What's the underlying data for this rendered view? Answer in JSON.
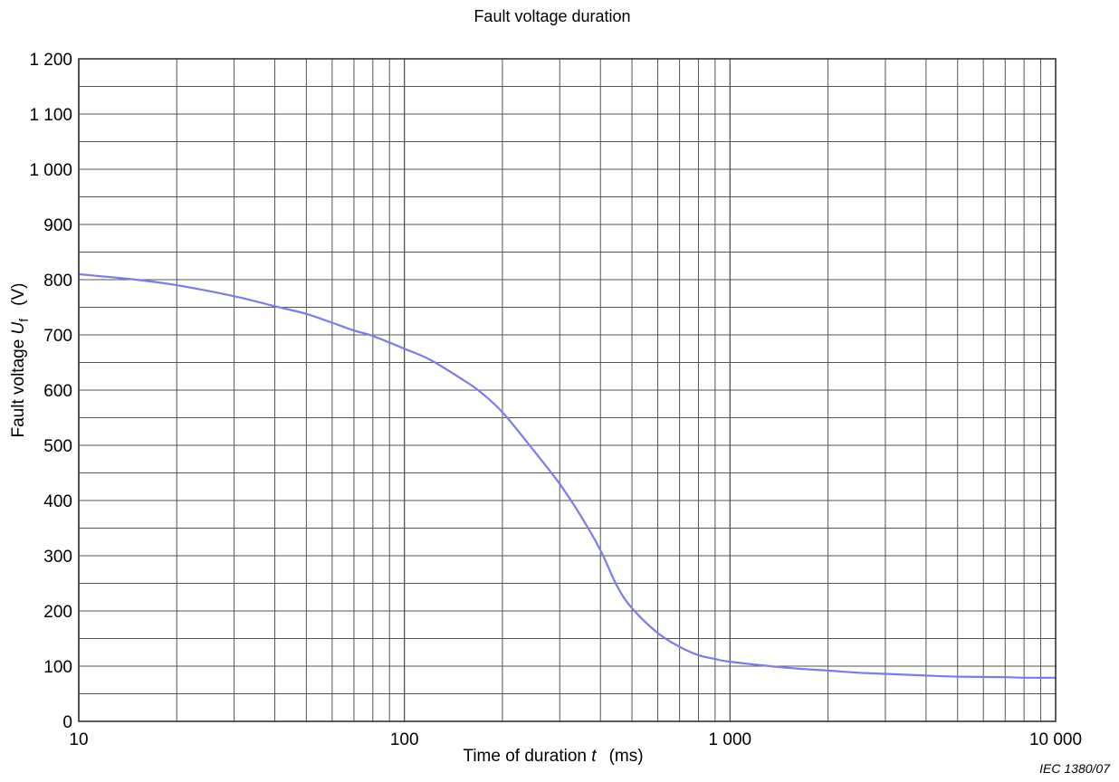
{
  "chart_data": {
    "type": "line",
    "title": "Fault voltage duration",
    "xlabel": {
      "prefix": "Time of duration ",
      "symbol": "t",
      "unit": "(ms)"
    },
    "ylabel": {
      "prefix": "Fault voltage ",
      "symbol": "U",
      "subscript": "f",
      "unit": "(V)"
    },
    "xscale": "log",
    "xlim": [
      10,
      10000
    ],
    "ylim": [
      0,
      1200
    ],
    "x_tick_labels": [
      {
        "value": 10,
        "label": "10"
      },
      {
        "value": 100,
        "label": "100"
      },
      {
        "value": 1000,
        "label": "1 000"
      },
      {
        "value": 10000,
        "label": "10 000"
      }
    ],
    "y_tick_labels": [
      {
        "value": 0,
        "label": "0"
      },
      {
        "value": 100,
        "label": "100"
      },
      {
        "value": 200,
        "label": "200"
      },
      {
        "value": 300,
        "label": "300"
      },
      {
        "value": 400,
        "label": "400"
      },
      {
        "value": 500,
        "label": "500"
      },
      {
        "value": 600,
        "label": "600"
      },
      {
        "value": 700,
        "label": "700"
      },
      {
        "value": 800,
        "label": "800"
      },
      {
        "value": 900,
        "label": "900"
      },
      {
        "value": 1000,
        "label": "1 000"
      },
      {
        "value": 1100,
        "label": "1 100"
      },
      {
        "value": 1200,
        "label": "1 200"
      }
    ],
    "y_minor_step": 50,
    "grid": true,
    "series": [
      {
        "color": "#7b7bef",
        "x": [
          10,
          15,
          20,
          30,
          40,
          50,
          60,
          70,
          80,
          100,
          120,
          150,
          170,
          200,
          250,
          300,
          350,
          400,
          450,
          500,
          600,
          700,
          800,
          900,
          1000,
          1500,
          2000,
          2500,
          3000,
          4000,
          5000,
          7000,
          8000,
          10000
        ],
        "y": [
          810,
          800,
          790,
          770,
          752,
          738,
          722,
          708,
          698,
          675,
          655,
          620,
          598,
          560,
          490,
          430,
          370,
          310,
          245,
          205,
          160,
          135,
          120,
          113,
          108,
          97,
          92,
          88,
          86,
          83,
          81,
          80,
          79,
          79
        ]
      }
    ],
    "source_ref": "IEC   1380/07"
  }
}
